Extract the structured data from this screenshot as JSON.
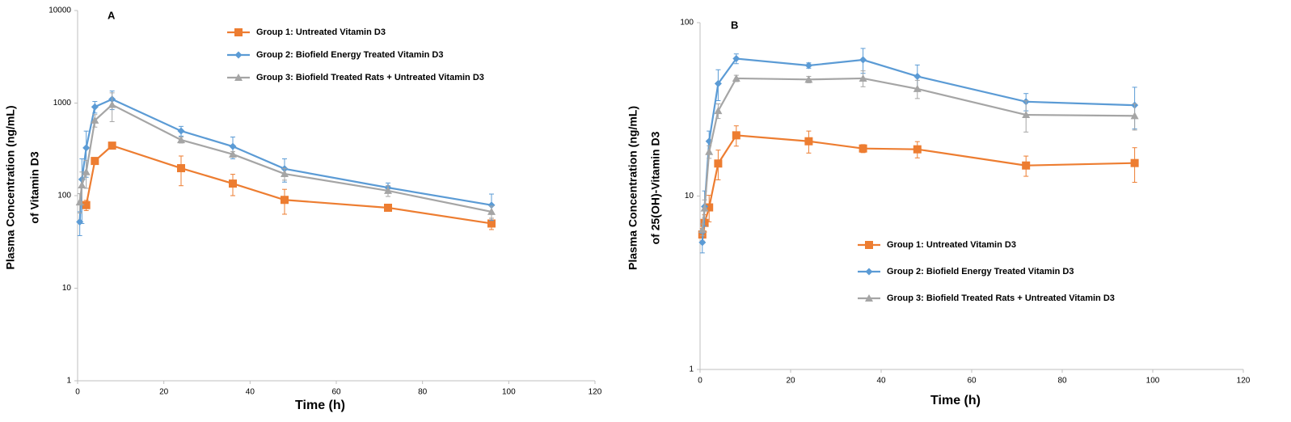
{
  "chart_data": [
    {
      "type": "line",
      "panel_label": "A",
      "ylabel": [
        "Plasma Concentration (ng/mL)",
        "of Vitamin D3"
      ],
      "xlabel": "Time (h)",
      "log_y": true,
      "legend": "upper-center",
      "x": [
        0.5,
        1,
        2,
        4,
        8,
        24,
        36,
        48,
        72,
        96
      ],
      "xlim": [
        0,
        120
      ],
      "xticks": [
        0,
        20,
        40,
        60,
        80,
        100,
        120
      ],
      "ylim": [
        1,
        10000
      ],
      "yticks": [
        1,
        10,
        100,
        1000,
        10000
      ],
      "series": [
        {
          "name": "Group 1: Untreated Vitamin D3",
          "color": "#ED7D31",
          "marker": "square",
          "values": [
            null,
            null,
            79,
            237,
            347,
            198,
            135,
            90,
            74,
            50
          ],
          "errors": [
            null,
            null,
            10,
            5,
            10,
            70,
            35,
            27,
            5,
            7
          ]
        },
        {
          "name": "Group 2:  Biofield Energy Treated Vitamin D3",
          "color": "#5B9BD5",
          "marker": "diamond",
          "values": [
            52,
            150,
            328,
            910,
            1100,
            500,
            340,
            195,
            122,
            79
          ],
          "errors": [
            15,
            100,
            170,
            130,
            250,
            60,
            90,
            55,
            15,
            25
          ]
        },
        {
          "name": "Group 3: Biofield Treated Rats + Untreated Vitamin D3",
          "color": "#A5A5A5",
          "marker": "triangle",
          "values": [
            85,
            130,
            180,
            650,
            960,
            400,
            280,
            172,
            113,
            67
          ],
          "errors": [
            20,
            50,
            60,
            100,
            330,
            30,
            20,
            25,
            15,
            10
          ]
        }
      ]
    },
    {
      "type": "line",
      "panel_label": "B",
      "ylabel": [
        "Plasma Concentration (ng/mL)",
        "of 25(OH)-Vitamin D3"
      ],
      "xlabel": "Time (h)",
      "log_y": true,
      "legend": "lower-center",
      "x": [
        0.5,
        1,
        2,
        4,
        8,
        24,
        36,
        48,
        72,
        96
      ],
      "xlim": [
        0,
        120
      ],
      "xticks": [
        0,
        20,
        40,
        60,
        80,
        100,
        120
      ],
      "ylim": [
        1,
        100
      ],
      "yticks": [
        1,
        10,
        100
      ],
      "series": [
        {
          "name": "Group 1: Untreated Vitamin D3",
          "color": "#ED7D31",
          "marker": "square",
          "values": [
            6.0,
            7.0,
            8.6,
            15.4,
            22.4,
            20.7,
            18.8,
            18.6,
            15.0,
            15.5
          ],
          "errors": [
            0.5,
            0.8,
            1.5,
            3,
            3,
            3,
            1,
            2,
            2,
            3.5
          ]
        },
        {
          "name": "Group 2:  Biofield Energy Treated Vitamin D3",
          "color": "#5B9BD5",
          "marker": "diamond",
          "values": [
            5.4,
            8.7,
            20.7,
            44.5,
            62,
            56.6,
            61,
            49,
            35,
            33.4
          ],
          "errors": [
            0.7,
            2,
            3,
            9,
            4,
            2,
            10,
            8,
            4,
            9
          ]
        },
        {
          "name": "Group 3: Biofield Treated Rats + Untreated Vitamin D3",
          "color": "#A5A5A5",
          "marker": "triangle",
          "values": [
            6.4,
            8.5,
            18,
            31,
            47.7,
            47,
            47.7,
            41.5,
            29.4,
            29
          ],
          "errors": [
            0.5,
            1,
            1.5,
            3,
            2,
            2,
            5,
            5,
            6,
            5
          ]
        }
      ]
    }
  ]
}
